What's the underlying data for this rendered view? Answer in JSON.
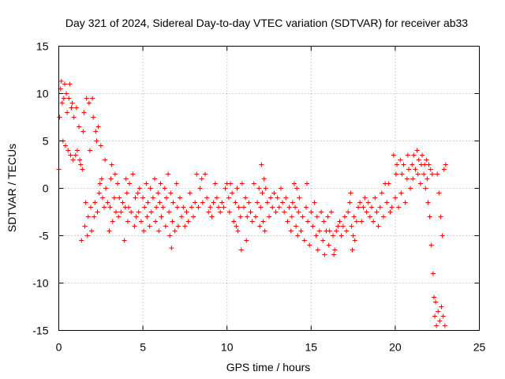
{
  "chart_data": {
    "type": "scatter",
    "title": "Day 321 of 2024, Sidereal Day-to-day VTEC variation (SDTVAR) for receiver ab33",
    "xlabel": "GPS time / hours",
    "ylabel": "SDTVAR / TECUs",
    "xlim": [
      0,
      25
    ],
    "ylim": [
      -15,
      15
    ],
    "xticks": [
      "0",
      "5",
      "10",
      "15",
      "20",
      "25"
    ],
    "yticks": [
      "15",
      "10",
      "5",
      "0",
      "-5",
      "-10",
      "-15"
    ],
    "grid": true,
    "marker": "+",
    "series": [
      {
        "name": "SDTVAR",
        "color": "#ff0000",
        "points": [
          [
            0.0,
            2.0
          ],
          [
            0.05,
            7.5
          ],
          [
            0.1,
            10.5
          ],
          [
            0.15,
            11.3
          ],
          [
            0.2,
            9.0
          ],
          [
            0.25,
            5.0
          ],
          [
            0.3,
            9.5
          ],
          [
            0.35,
            11.0
          ],
          [
            0.4,
            4.5
          ],
          [
            0.45,
            10.0
          ],
          [
            0.5,
            8.0
          ],
          [
            0.55,
            4.0
          ],
          [
            0.6,
            9.5
          ],
          [
            0.65,
            11.0
          ],
          [
            0.7,
            3.5
          ],
          [
            0.75,
            8.5
          ],
          [
            0.8,
            9.0
          ],
          [
            0.85,
            3.0
          ],
          [
            0.9,
            7.5
          ],
          [
            1.0,
            3.5
          ],
          [
            1.05,
            8.5
          ],
          [
            1.1,
            4.0
          ],
          [
            1.2,
            6.5
          ],
          [
            1.25,
            3.0
          ],
          [
            1.3,
            2.5
          ],
          [
            1.35,
            -5.5
          ],
          [
            1.4,
            2.0
          ],
          [
            1.45,
            6.0
          ],
          [
            1.5,
            8.0
          ],
          [
            1.55,
            -4.0
          ],
          [
            1.6,
            -1.5
          ],
          [
            1.65,
            9.5
          ],
          [
            1.7,
            -5.0
          ],
          [
            1.75,
            -3.0
          ],
          [
            1.8,
            9.0
          ],
          [
            1.85,
            4.0
          ],
          [
            1.9,
            -2.0
          ],
          [
            1.95,
            -4.5
          ],
          [
            2.0,
            9.5
          ],
          [
            2.05,
            7.5
          ],
          [
            2.1,
            -3.0
          ],
          [
            2.15,
            -1.5
          ],
          [
            2.2,
            6.0
          ],
          [
            2.25,
            5.0
          ],
          [
            2.3,
            -2.5
          ],
          [
            2.35,
            6.5
          ],
          [
            2.4,
            -0.5
          ],
          [
            2.45,
            0.5
          ],
          [
            2.5,
            4.5
          ],
          [
            2.55,
            1.0
          ],
          [
            2.6,
            -1.0
          ],
          [
            2.7,
            -2.0
          ],
          [
            2.75,
            3.0
          ],
          [
            2.8,
            0.0
          ],
          [
            2.9,
            -1.5
          ],
          [
            3.0,
            -4.5
          ],
          [
            3.05,
            -2.0
          ],
          [
            3.1,
            1.0
          ],
          [
            3.15,
            2.5
          ],
          [
            3.2,
            -3.5
          ],
          [
            3.3,
            -1.0
          ],
          [
            3.35,
            1.5
          ],
          [
            3.4,
            -2.5
          ],
          [
            3.5,
            0.5
          ],
          [
            3.55,
            -3.0
          ],
          [
            3.6,
            -1.0
          ],
          [
            3.7,
            -2.5
          ],
          [
            3.8,
            -1.5
          ],
          [
            3.9,
            -5.5
          ],
          [
            3.95,
            -2.0
          ],
          [
            4.0,
            1.0
          ],
          [
            4.05,
            -0.5
          ],
          [
            4.1,
            -3.5
          ],
          [
            4.15,
            -2.0
          ],
          [
            4.2,
            0.5
          ],
          [
            4.3,
            -2.5
          ],
          [
            4.4,
            1.5
          ],
          [
            4.5,
            -4.0
          ],
          [
            4.55,
            -1.0
          ],
          [
            4.6,
            -3.0
          ],
          [
            4.7,
            -0.5
          ],
          [
            4.75,
            -2.5
          ],
          [
            4.8,
            0.0
          ],
          [
            4.9,
            -3.5
          ],
          [
            5.0,
            -1.0
          ],
          [
            5.05,
            -4.5
          ],
          [
            5.1,
            -2.0
          ],
          [
            5.2,
            0.5
          ],
          [
            5.25,
            -3.0
          ],
          [
            5.3,
            -1.5
          ],
          [
            5.4,
            -4.0
          ],
          [
            5.45,
            0.0
          ],
          [
            5.5,
            -2.5
          ],
          [
            5.6,
            -1.0
          ],
          [
            5.7,
            1.0
          ],
          [
            5.75,
            -3.5
          ],
          [
            5.8,
            -2.0
          ],
          [
            5.9,
            -0.5
          ],
          [
            5.95,
            -4.5
          ],
          [
            6.0,
            -1.5
          ],
          [
            6.05,
            0.5
          ],
          [
            6.1,
            -3.0
          ],
          [
            6.2,
            -2.0
          ],
          [
            6.3,
            0.0
          ],
          [
            6.35,
            -4.0
          ],
          [
            6.4,
            -1.0
          ],
          [
            6.5,
            1.5
          ],
          [
            6.55,
            -2.5
          ],
          [
            6.6,
            -5.0
          ],
          [
            6.65,
            -0.5
          ],
          [
            6.7,
            -6.3
          ],
          [
            6.75,
            -3.5
          ],
          [
            6.8,
            -1.5
          ],
          [
            6.9,
            -4.5
          ],
          [
            7.0,
            0.5
          ],
          [
            7.05,
            -2.0
          ],
          [
            7.1,
            -4.0
          ],
          [
            7.2,
            -1.0
          ],
          [
            7.3,
            -3.0
          ],
          [
            7.4,
            -2.0
          ],
          [
            7.5,
            -4.0
          ],
          [
            7.6,
            -2.5
          ],
          [
            7.7,
            -3.5
          ],
          [
            7.8,
            -0.5
          ],
          [
            7.9,
            -2.0
          ],
          [
            8.0,
            -3.0
          ],
          [
            8.1,
            -1.5
          ],
          [
            8.2,
            1.5
          ],
          [
            8.3,
            -2.0
          ],
          [
            8.4,
            0.0
          ],
          [
            8.5,
            1.0
          ],
          [
            8.55,
            -1.5
          ],
          [
            8.7,
            1.5
          ],
          [
            8.8,
            -1.0
          ],
          [
            8.9,
            -2.5
          ],
          [
            9.0,
            -2.0
          ],
          [
            9.1,
            -3.0
          ],
          [
            9.2,
            -1.5
          ],
          [
            9.3,
            0.5
          ],
          [
            9.4,
            -1.0
          ],
          [
            9.5,
            -2.0
          ],
          [
            9.6,
            -2.5
          ],
          [
            9.7,
            -1.5
          ],
          [
            9.8,
            -2.0
          ],
          [
            9.9,
            0.0
          ],
          [
            10.0,
            0.5
          ],
          [
            10.1,
            -1.0
          ],
          [
            10.15,
            -2.5
          ],
          [
            10.2,
            0.5
          ],
          [
            10.3,
            -0.5
          ],
          [
            10.4,
            -3.5
          ],
          [
            10.5,
            -1.5
          ],
          [
            10.55,
            -4.0
          ],
          [
            10.6,
            0.0
          ],
          [
            10.65,
            -4.5
          ],
          [
            10.7,
            -2.0
          ],
          [
            10.8,
            -3.0
          ],
          [
            10.85,
            -6.5
          ],
          [
            10.9,
            0.5
          ],
          [
            11.0,
            -2.0
          ],
          [
            11.1,
            -1.0
          ],
          [
            11.15,
            -5.5
          ],
          [
            11.2,
            -3.0
          ],
          [
            11.3,
            -1.5
          ],
          [
            11.4,
            -2.5
          ],
          [
            11.5,
            -3.5
          ],
          [
            11.6,
            0.5
          ],
          [
            11.7,
            -3.0
          ],
          [
            11.8,
            -1.5
          ],
          [
            11.9,
            0.0
          ],
          [
            11.95,
            -4.0
          ],
          [
            12.0,
            -2.0
          ],
          [
            12.05,
            2.5
          ],
          [
            12.1,
            -0.5
          ],
          [
            12.15,
            -3.5
          ],
          [
            12.2,
            1.0
          ],
          [
            12.25,
            -4.5
          ],
          [
            12.3,
            0.0
          ],
          [
            12.4,
            -1.5
          ],
          [
            12.5,
            -3.0
          ],
          [
            12.6,
            -1.0
          ],
          [
            12.7,
            -2.0
          ],
          [
            12.8,
            -0.5
          ],
          [
            12.9,
            -2.5
          ],
          [
            13.0,
            -1.0
          ],
          [
            13.1,
            -2.0
          ],
          [
            13.2,
            0.0
          ],
          [
            13.3,
            -1.5
          ],
          [
            13.4,
            -2.5
          ],
          [
            13.5,
            -1.0
          ],
          [
            13.6,
            -3.5
          ],
          [
            13.7,
            -2.0
          ],
          [
            13.8,
            -4.5
          ],
          [
            13.85,
            -3.0
          ],
          [
            13.9,
            -1.5
          ],
          [
            14.0,
            0.5
          ],
          [
            14.05,
            -2.0
          ],
          [
            14.1,
            -4.0
          ],
          [
            14.15,
            0.0
          ],
          [
            14.2,
            -5.0
          ],
          [
            14.25,
            -2.5
          ],
          [
            14.3,
            -1.0
          ],
          [
            14.4,
            -4.5
          ],
          [
            14.5,
            -3.0
          ],
          [
            14.6,
            -5.5
          ],
          [
            14.7,
            -2.0
          ],
          [
            14.75,
            0.5
          ],
          [
            14.8,
            -3.5
          ],
          [
            14.9,
            -6.0
          ],
          [
            15.0,
            -2.5
          ],
          [
            15.1,
            -4.0
          ],
          [
            15.2,
            -1.5
          ],
          [
            15.3,
            -5.0
          ],
          [
            15.35,
            -3.0
          ],
          [
            15.4,
            -6.5
          ],
          [
            15.5,
            -4.5
          ],
          [
            15.6,
            -2.5
          ],
          [
            15.7,
            -5.5
          ],
          [
            15.75,
            -3.5
          ],
          [
            15.8,
            -7.0
          ],
          [
            15.9,
            -4.5
          ],
          [
            16.0,
            -3.0
          ],
          [
            16.05,
            -6.0
          ],
          [
            16.1,
            -4.5
          ],
          [
            16.2,
            -2.5
          ],
          [
            16.3,
            -5.0
          ],
          [
            16.35,
            -7.0
          ],
          [
            16.4,
            -6.5
          ],
          [
            16.5,
            -4.5
          ],
          [
            16.6,
            -4.0
          ],
          [
            16.7,
            -3.5
          ],
          [
            16.8,
            -5.0
          ],
          [
            16.9,
            -4.0
          ],
          [
            17.0,
            -3.0
          ],
          [
            17.1,
            -4.5
          ],
          [
            17.2,
            -2.5
          ],
          [
            17.3,
            -1.5
          ],
          [
            17.35,
            -0.5
          ],
          [
            17.4,
            -4.0
          ],
          [
            17.45,
            -6.5
          ],
          [
            17.5,
            -5.0
          ],
          [
            17.55,
            -3.0
          ],
          [
            17.6,
            -5.5
          ],
          [
            17.7,
            -3.5
          ],
          [
            17.8,
            -2.0
          ],
          [
            17.9,
            -1.5
          ],
          [
            18.0,
            -3.5
          ],
          [
            18.1,
            -2.0
          ],
          [
            18.2,
            -1.0
          ],
          [
            18.3,
            -2.5
          ],
          [
            18.4,
            -1.5
          ],
          [
            18.5,
            -3.0
          ],
          [
            18.6,
            -2.0
          ],
          [
            18.7,
            -3.5
          ],
          [
            18.8,
            -1.0
          ],
          [
            18.9,
            -2.5
          ],
          [
            19.0,
            -4.0
          ],
          [
            19.1,
            -2.0
          ],
          [
            19.2,
            -0.5
          ],
          [
            19.3,
            -3.0
          ],
          [
            19.4,
            0.5
          ],
          [
            19.5,
            -1.5
          ],
          [
            19.6,
            0.5
          ],
          [
            19.7,
            -2.5
          ],
          [
            19.8,
            -2.0
          ],
          [
            19.9,
            3.5
          ],
          [
            20.0,
            -1.0
          ],
          [
            20.05,
            1.5
          ],
          [
            20.1,
            2.5
          ],
          [
            20.2,
            -2.0
          ],
          [
            20.3,
            3.0
          ],
          [
            20.35,
            -0.5
          ],
          [
            20.4,
            1.5
          ],
          [
            20.5,
            2.5
          ],
          [
            20.6,
            -1.5
          ],
          [
            20.7,
            1.0
          ],
          [
            20.75,
            3.5
          ],
          [
            20.8,
            2.0
          ],
          [
            20.9,
            0.0
          ],
          [
            21.0,
            2.5
          ],
          [
            21.05,
            1.0
          ],
          [
            21.1,
            3.5
          ],
          [
            21.2,
            2.0
          ],
          [
            21.3,
            4.0
          ],
          [
            21.35,
            1.5
          ],
          [
            21.4,
            3.0
          ],
          [
            21.5,
            0.5
          ],
          [
            21.55,
            2.5
          ],
          [
            21.6,
            3.5
          ],
          [
            21.7,
            1.5
          ],
          [
            21.75,
            2.5
          ],
          [
            21.8,
            0.0
          ],
          [
            21.85,
            3.0
          ],
          [
            21.9,
            1.0
          ],
          [
            21.95,
            -1.5
          ],
          [
            22.0,
            2.5
          ],
          [
            22.05,
            -3.0
          ],
          [
            22.1,
            2.0
          ],
          [
            22.15,
            -6.0
          ],
          [
            22.2,
            1.5
          ],
          [
            22.25,
            -9.0
          ],
          [
            22.3,
            -11.5
          ],
          [
            22.35,
            -13.5
          ],
          [
            22.4,
            -12.0
          ],
          [
            22.45,
            -14.5
          ],
          [
            22.5,
            1.5
          ],
          [
            22.55,
            -13.0
          ],
          [
            22.6,
            -0.5
          ],
          [
            22.65,
            -14.0
          ],
          [
            22.7,
            -3.0
          ],
          [
            22.75,
            -12.5
          ],
          [
            22.8,
            -5.0
          ],
          [
            22.85,
            -13.5
          ],
          [
            22.9,
            2.0
          ],
          [
            22.95,
            -14.5
          ],
          [
            23.0,
            2.5
          ]
        ]
      }
    ]
  }
}
